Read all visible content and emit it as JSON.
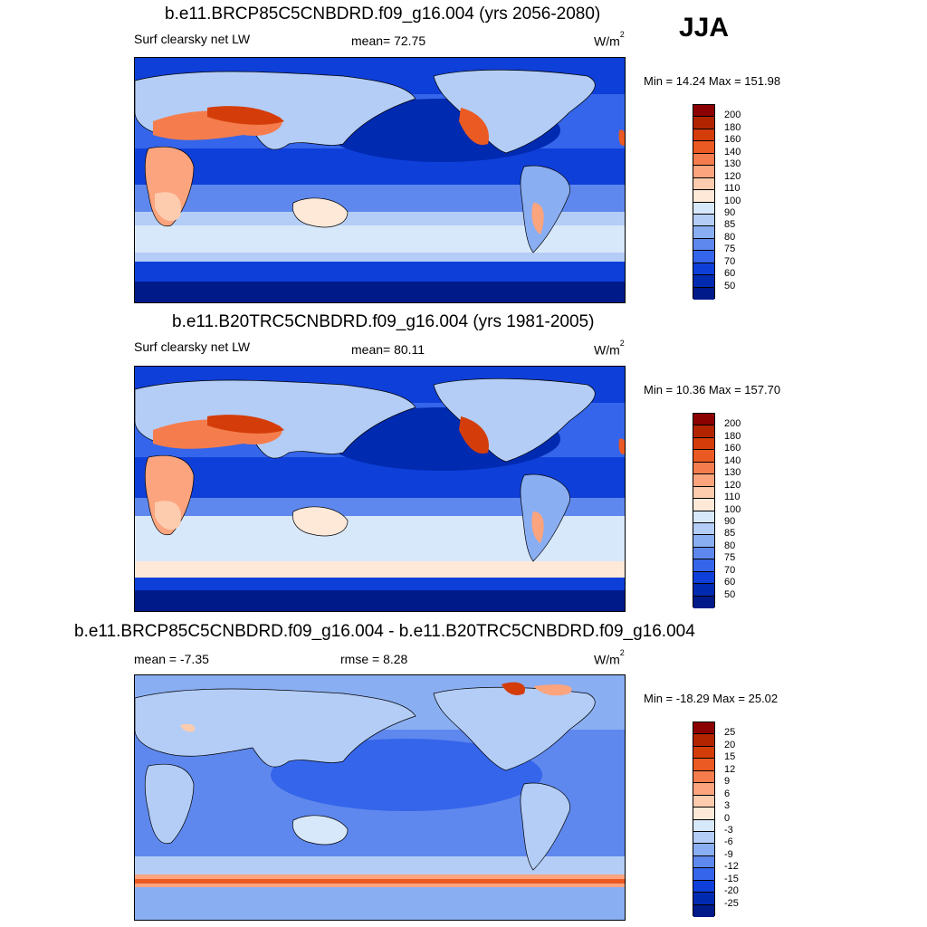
{
  "season": "JJA",
  "panels": [
    {
      "title": "b.e11.BRCP85C5CNBDRD.f09_g16.004 (yrs 2056-2080)",
      "left_label": "Surf clearsky net LW",
      "mid_label": "mean=  72.75",
      "unit_base": "W/m",
      "unit_exp": "2",
      "minmax": "Min =  14.24 Max = 151.98",
      "colorbar_labels": [
        "200",
        "180",
        "160",
        "140",
        "130",
        "120",
        "110",
        "100",
        "90",
        "85",
        "80",
        "75",
        "70",
        "60",
        "50"
      ]
    },
    {
      "title": "b.e11.B20TRC5CNBDRD.f09_g16.004 (yrs 1981-2005)",
      "left_label": "Surf clearsky net LW",
      "mid_label": "mean=  80.11",
      "unit_base": "W/m",
      "unit_exp": "2",
      "minmax": "Min =  10.36 Max = 157.70",
      "colorbar_labels": [
        "200",
        "180",
        "160",
        "140",
        "130",
        "120",
        "110",
        "100",
        "90",
        "85",
        "80",
        "75",
        "70",
        "60",
        "50"
      ]
    },
    {
      "title": "b.e11.BRCP85C5CNBDRD.f09_g16.004 - b.e11.B20TRC5CNBDRD.f09_g16.004",
      "left_label": "mean =  -7.35",
      "mid_label": "rmse =    8.28",
      "unit_base": "W/m",
      "unit_exp": "2",
      "minmax": "Min = -18.29 Max =  25.02",
      "colorbar_labels": [
        "25",
        "20",
        "15",
        "12",
        "9",
        "6",
        "3",
        "0",
        "-3",
        "-6",
        "-9",
        "-12",
        "-15",
        "-20",
        "-25"
      ]
    }
  ],
  "colors": {
    "scale": [
      "#8b0000",
      "#b22400",
      "#d43d0a",
      "#ea5a22",
      "#f57d4d",
      "#fba47e",
      "#fdcbae",
      "#fee9d9",
      "#d8e8fb",
      "#b3cdf6",
      "#8aaef2",
      "#5f88ee",
      "#3565ea",
      "#0f3fd9",
      "#002ab0",
      "#001a8a"
    ],
    "land_outline": "#000000"
  }
}
